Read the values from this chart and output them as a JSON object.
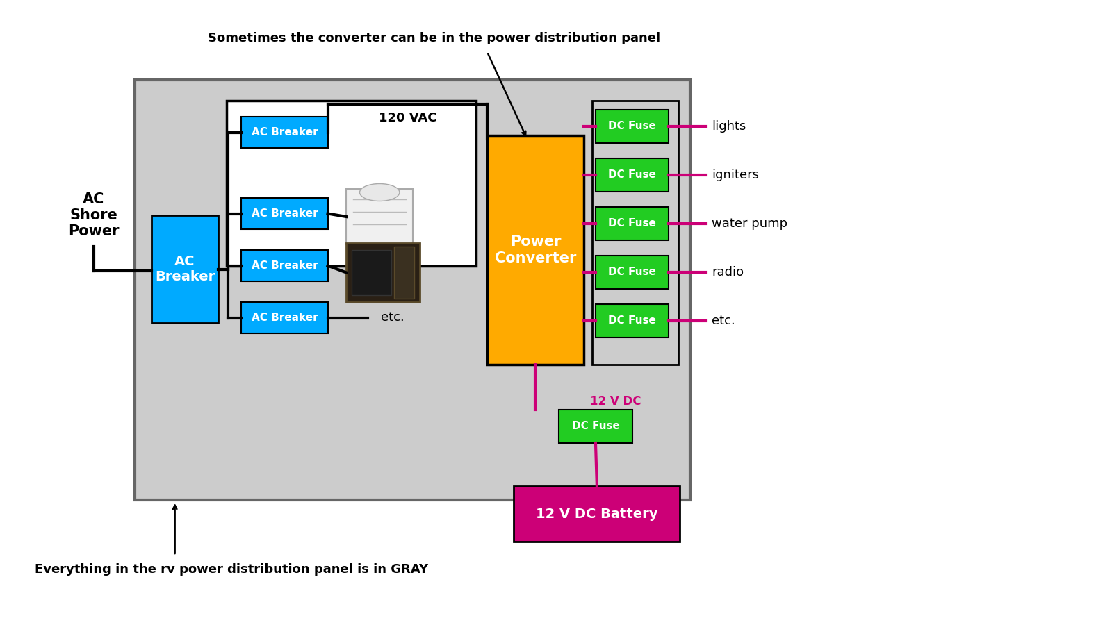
{
  "bg_color": "#ffffff",
  "panel_color": "#cccccc",
  "ac_breaker_color": "#00aaff",
  "dc_fuse_color": "#22cc22",
  "power_converter_color": "#ffaa00",
  "battery_color": "#cc0077",
  "wire_black": "#000000",
  "wire_magenta": "#cc0077",
  "text_white": "#ffffff",
  "text_black": "#000000",
  "top_note": "Sometimes the converter can be in the power distribution panel",
  "bottom_note": "Everything in the rv power distribution panel is in GRAY",
  "ac_shore_label": "AC\nShore\nPower",
  "main_breaker_label": "AC\nBreaker",
  "small_breaker_labels": [
    "AC Breaker",
    "AC Breaker",
    "AC Breaker",
    "AC Breaker"
  ],
  "converter_label": "Power\nConverter",
  "battery_label": "12 V DC Battery",
  "vac_label": "120 VAC",
  "vdc_label": "12 V DC",
  "fuse_label": "DC Fuse",
  "fuse_outputs": [
    "lights",
    "igniters",
    "water pump",
    "radio",
    "etc."
  ],
  "etc_label": "etc."
}
